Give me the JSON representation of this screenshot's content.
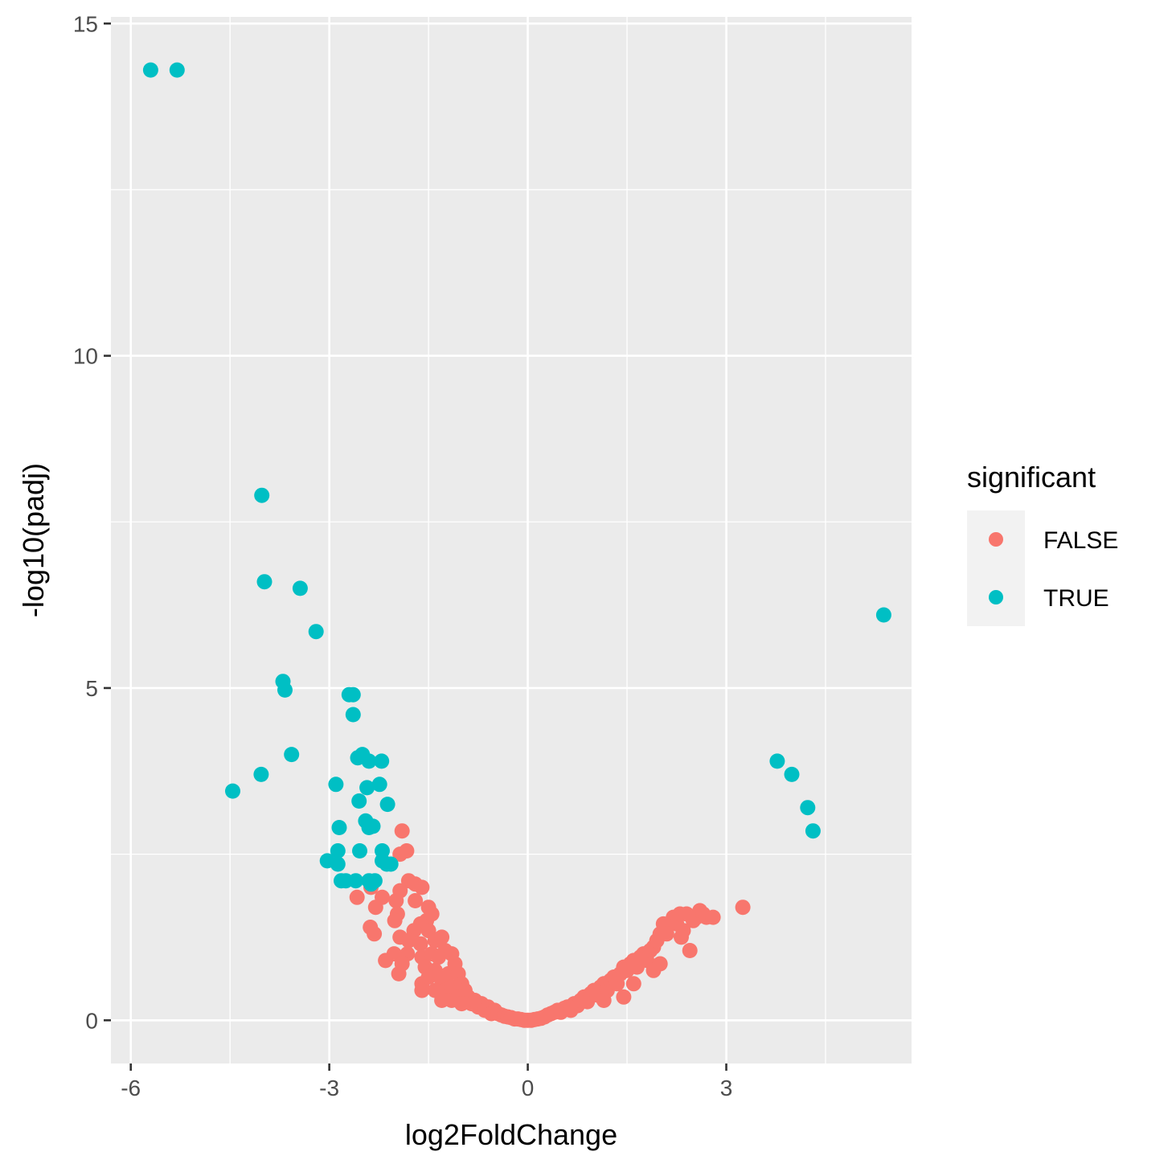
{
  "chart_data": {
    "type": "scatter",
    "title": "",
    "xlabel": "log2FoldChange",
    "ylabel": "-log10(padj)",
    "xlim": [
      -6.3,
      5.8
    ],
    "ylim": [
      -0.65,
      15.1
    ],
    "x_ticks": [
      -6,
      -3,
      0,
      3
    ],
    "x_tick_labels": [
      "-6",
      "-3",
      "0",
      "3"
    ],
    "y_ticks": [
      0,
      5,
      10,
      15
    ],
    "y_tick_labels": [
      "0",
      "5",
      "10",
      "15"
    ],
    "grid": true,
    "legend": {
      "title": "significant",
      "position": "right",
      "entries": [
        {
          "label": "FALSE",
          "color": "#F8766D"
        },
        {
          "label": "TRUE",
          "color": "#00BFC4"
        }
      ]
    },
    "colors": {
      "FALSE": "#F8766D",
      "TRUE": "#00BFC4",
      "panel": "#EBEBEB",
      "grid": "#FFFFFF"
    },
    "series": [
      {
        "name": "TRUE",
        "points": [
          [
            -5.7,
            14.3
          ],
          [
            -5.3,
            14.3
          ],
          [
            -4.02,
            7.9
          ],
          [
            -3.98,
            6.6
          ],
          [
            -3.44,
            6.5
          ],
          [
            -3.2,
            5.85
          ],
          [
            -3.7,
            5.1
          ],
          [
            -3.67,
            4.97
          ],
          [
            -2.7,
            4.9
          ],
          [
            -2.64,
            4.9
          ],
          [
            -2.64,
            4.6
          ],
          [
            -3.57,
            4.0
          ],
          [
            -4.03,
            3.7
          ],
          [
            -4.46,
            3.45
          ],
          [
            -2.5,
            4.0
          ],
          [
            -2.57,
            3.95
          ],
          [
            -2.4,
            3.9
          ],
          [
            -2.21,
            3.9
          ],
          [
            -2.9,
            3.55
          ],
          [
            -2.43,
            3.5
          ],
          [
            -2.24,
            3.55
          ],
          [
            -2.55,
            3.3
          ],
          [
            -2.12,
            3.25
          ],
          [
            -2.45,
            3.0
          ],
          [
            -2.4,
            2.9
          ],
          [
            -2.34,
            2.92
          ],
          [
            -2.85,
            2.9
          ],
          [
            -2.87,
            2.55
          ],
          [
            -2.54,
            2.55
          ],
          [
            -2.2,
            2.55
          ],
          [
            -3.03,
            2.4
          ],
          [
            -2.87,
            2.35
          ],
          [
            -2.2,
            2.4
          ],
          [
            -2.13,
            2.35
          ],
          [
            -2.07,
            2.35
          ],
          [
            -2.75,
            2.1
          ],
          [
            -2.82,
            2.1
          ],
          [
            -2.6,
            2.1
          ],
          [
            -2.4,
            2.1
          ],
          [
            -2.37,
            2.05
          ],
          [
            -2.31,
            2.1
          ],
          [
            3.77,
            3.9
          ],
          [
            3.99,
            3.7
          ],
          [
            4.23,
            3.2
          ],
          [
            4.31,
            2.85
          ],
          [
            5.38,
            6.1
          ]
        ]
      },
      {
        "name": "FALSE",
        "points": [
          [
            -1.9,
            2.85
          ],
          [
            -1.93,
            2.5
          ],
          [
            -1.83,
            2.55
          ],
          [
            -1.8,
            2.1
          ],
          [
            -1.7,
            2.05
          ],
          [
            -1.6,
            2.0
          ],
          [
            -2.37,
            2.0
          ],
          [
            -2.2,
            1.85
          ],
          [
            -2.58,
            1.85
          ],
          [
            -2.3,
            1.7
          ],
          [
            -1.99,
            1.8
          ],
          [
            -1.93,
            1.95
          ],
          [
            -1.97,
            1.6
          ],
          [
            -2.01,
            1.5
          ],
          [
            -2.38,
            1.4
          ],
          [
            -2.32,
            1.3
          ],
          [
            -1.93,
            1.25
          ],
          [
            -1.7,
            1.8
          ],
          [
            -1.5,
            1.7
          ],
          [
            -1.45,
            1.6
          ],
          [
            -1.53,
            1.5
          ],
          [
            -1.62,
            1.45
          ],
          [
            -1.72,
            1.35
          ],
          [
            -1.5,
            1.35
          ],
          [
            -1.8,
            1.2
          ],
          [
            -1.62,
            1.15
          ],
          [
            -1.4,
            1.2
          ],
          [
            -1.3,
            1.25
          ],
          [
            -1.82,
            1.0
          ],
          [
            -2.02,
            1.0
          ],
          [
            -2.15,
            0.9
          ],
          [
            -1.9,
            0.85
          ],
          [
            -1.95,
            0.7
          ],
          [
            -1.6,
            0.95
          ],
          [
            -1.45,
            1.0
          ],
          [
            -1.35,
            0.95
          ],
          [
            -1.25,
            1.05
          ],
          [
            -1.15,
            1.0
          ],
          [
            -1.55,
            0.8
          ],
          [
            -1.4,
            0.75
          ],
          [
            -1.5,
            0.65
          ],
          [
            -1.6,
            0.55
          ],
          [
            -1.3,
            0.6
          ],
          [
            -1.2,
            0.7
          ],
          [
            -1.1,
            0.85
          ],
          [
            -1.05,
            0.7
          ],
          [
            -1.6,
            0.45
          ],
          [
            -1.4,
            0.45
          ],
          [
            -1.25,
            0.45
          ],
          [
            -1.15,
            0.5
          ],
          [
            -1.0,
            0.55
          ],
          [
            -0.95,
            0.45
          ],
          [
            -1.3,
            0.3
          ],
          [
            -1.15,
            0.3
          ],
          [
            -1.05,
            0.35
          ],
          [
            -0.9,
            0.35
          ],
          [
            -0.8,
            0.3
          ],
          [
            -1.0,
            0.25
          ],
          [
            -0.85,
            0.25
          ],
          [
            -0.7,
            0.25
          ],
          [
            -0.75,
            0.2
          ],
          [
            -0.6,
            0.2
          ],
          [
            -0.65,
            0.15
          ],
          [
            -0.5,
            0.15
          ],
          [
            -0.55,
            0.1
          ],
          [
            -0.45,
            0.1
          ],
          [
            -0.4,
            0.08
          ],
          [
            -0.35,
            0.06
          ],
          [
            -0.3,
            0.05
          ],
          [
            -0.25,
            0.04
          ],
          [
            -0.2,
            0.02
          ],
          [
            -0.15,
            0.02
          ],
          [
            -0.1,
            0.01
          ],
          [
            -0.05,
            0.0
          ],
          [
            0.0,
            0.0
          ],
          [
            0.05,
            0.0
          ],
          [
            0.1,
            0.01
          ],
          [
            0.15,
            0.02
          ],
          [
            0.2,
            0.03
          ],
          [
            0.25,
            0.05
          ],
          [
            0.3,
            0.08
          ],
          [
            0.35,
            0.1
          ],
          [
            0.4,
            0.12
          ],
          [
            0.45,
            0.15
          ],
          [
            0.5,
            0.12
          ],
          [
            0.55,
            0.18
          ],
          [
            0.6,
            0.2
          ],
          [
            0.65,
            0.15
          ],
          [
            0.7,
            0.25
          ],
          [
            0.75,
            0.22
          ],
          [
            0.8,
            0.3
          ],
          [
            0.85,
            0.35
          ],
          [
            0.9,
            0.28
          ],
          [
            0.95,
            0.4
          ],
          [
            1.0,
            0.45
          ],
          [
            1.05,
            0.38
          ],
          [
            1.1,
            0.5
          ],
          [
            1.15,
            0.55
          ],
          [
            1.2,
            0.45
          ],
          [
            1.25,
            0.6
          ],
          [
            1.3,
            0.65
          ],
          [
            1.35,
            0.55
          ],
          [
            1.4,
            0.7
          ],
          [
            1.45,
            0.8
          ],
          [
            1.5,
            0.75
          ],
          [
            1.55,
            0.85
          ],
          [
            1.6,
            0.9
          ],
          [
            1.65,
            0.8
          ],
          [
            1.7,
            0.95
          ],
          [
            1.75,
            1.0
          ],
          [
            1.8,
            0.9
          ],
          [
            1.85,
            1.05
          ],
          [
            1.9,
            1.1
          ],
          [
            1.95,
            1.2
          ],
          [
            2.0,
            1.3
          ],
          [
            2.05,
            1.45
          ],
          [
            2.1,
            1.3
          ],
          [
            2.2,
            1.55
          ],
          [
            2.25,
            1.45
          ],
          [
            2.3,
            1.6
          ],
          [
            2.35,
            1.35
          ],
          [
            2.4,
            1.6
          ],
          [
            2.5,
            1.5
          ],
          [
            2.55,
            1.55
          ],
          [
            2.6,
            1.65
          ],
          [
            2.65,
            1.6
          ],
          [
            2.7,
            1.55
          ],
          [
            2.8,
            1.55
          ],
          [
            2.45,
            1.05
          ],
          [
            2.32,
            1.25
          ],
          [
            3.25,
            1.7
          ],
          [
            1.15,
            0.3
          ],
          [
            1.45,
            0.35
          ],
          [
            1.6,
            0.55
          ],
          [
            1.9,
            0.75
          ],
          [
            2.0,
            0.85
          ]
        ]
      }
    ]
  }
}
